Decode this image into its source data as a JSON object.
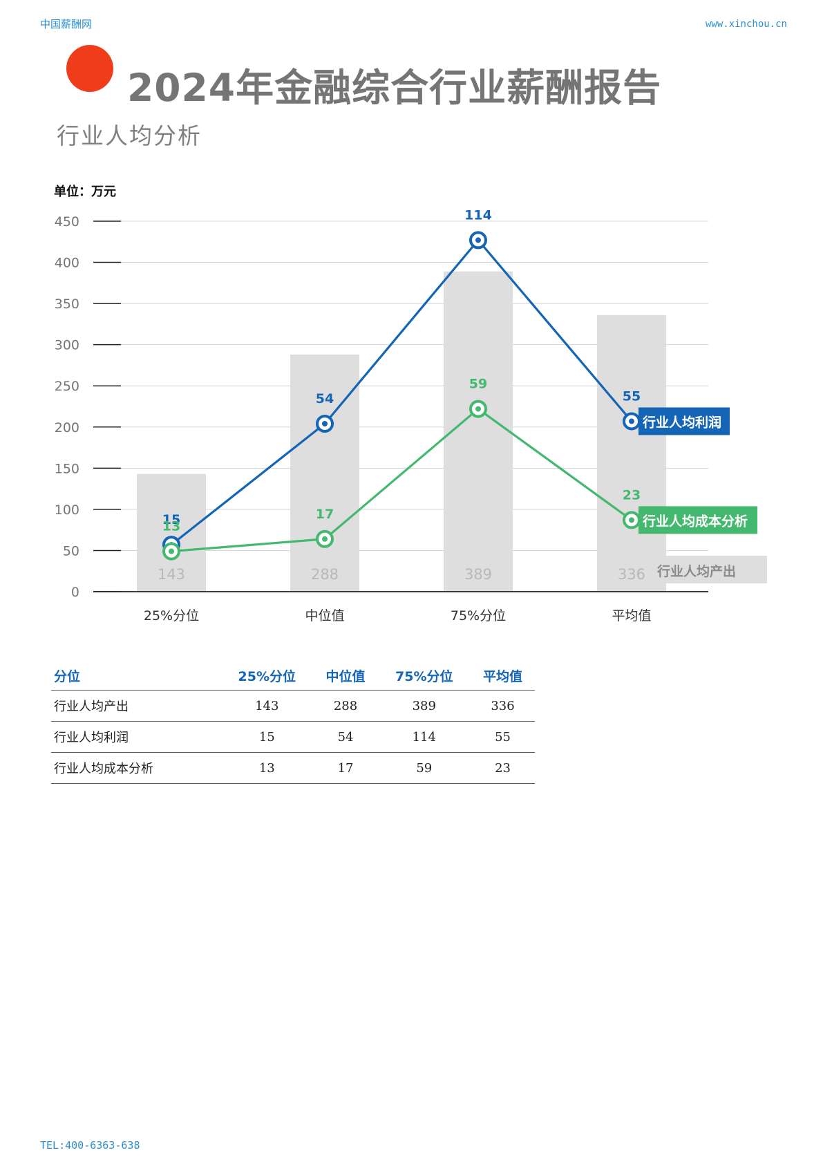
{
  "header": {
    "site_name": "中国薪酬网",
    "url": "www.xinchou.cn"
  },
  "title": "2024年金融综合行业薪酬报告",
  "subtitle": "行业人均分析",
  "unit_label": "单位：万元",
  "colors": {
    "accent": "#ef3c1a",
    "profit": "#1565b6",
    "cost": "#43b86e",
    "bar": "#dedede"
  },
  "chart_data": {
    "type": "bar",
    "categories": [
      "25%分位",
      "中位值",
      "75%分位",
      "平均值"
    ],
    "ylim": [
      0,
      450
    ],
    "yticks": [
      0,
      50,
      100,
      150,
      200,
      250,
      300,
      350,
      400,
      450
    ],
    "bars": {
      "name": "行业人均产出",
      "values": [
        143,
        288,
        389,
        336
      ]
    },
    "lines": [
      {
        "name": "行业人均利润",
        "labels": [
          15,
          54,
          114,
          55
        ],
        "plotted": [
          57,
          204,
          427,
          207
        ]
      },
      {
        "name": "行业人均成本分析",
        "labels": [
          13,
          17,
          59,
          23
        ],
        "plotted": [
          49,
          64,
          222,
          87
        ]
      }
    ]
  },
  "table": {
    "headers": [
      "分位",
      "25%分位",
      "中位值",
      "75%分位",
      "平均值"
    ],
    "rows": [
      [
        "行业人均产出",
        "143",
        "288",
        "389",
        "336"
      ],
      [
        "行业人均利润",
        "15",
        "54",
        "114",
        "55"
      ],
      [
        "行业人均成本分析",
        "13",
        "17",
        "59",
        "23"
      ]
    ]
  },
  "footer": {
    "tel": "TEL:400-6363-638"
  }
}
